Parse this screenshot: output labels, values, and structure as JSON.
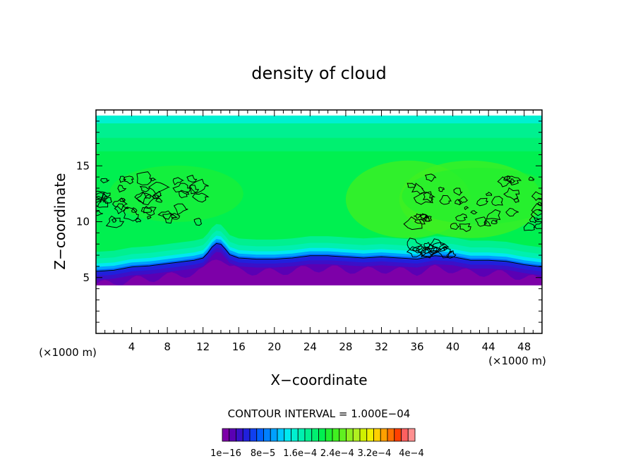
{
  "chart_data": {
    "type": "heatmap",
    "title": "density of cloud",
    "xlabel": "X−coordinate",
    "ylabel": "Z−coordinate",
    "x_unit_label": "(×1000 m)",
    "y_unit_label": "(×1000 m)",
    "x_range": [
      0,
      50
    ],
    "y_range": [
      0,
      20
    ],
    "x_ticks": [
      4,
      8,
      12,
      16,
      20,
      24,
      28,
      32,
      36,
      40,
      44,
      48
    ],
    "y_ticks": [
      5,
      10,
      15
    ],
    "grid": false,
    "contour_interval_text": "CONTOUR INTERVAL = 1.000E−04",
    "colorbar_labels": [
      "1e−16",
      "8e−5",
      "1.6e−4",
      "2.4e−4",
      "3.2e−4",
      "4e−4"
    ],
    "colorbar_levels": 28,
    "cloud_base_profile": {
      "x": [
        0,
        2,
        4,
        6,
        8,
        10,
        11,
        12,
        12.6,
        13.2,
        13.8,
        14.4,
        15,
        16,
        18,
        20,
        22,
        24,
        26,
        28,
        30,
        32,
        34,
        36,
        38,
        40,
        42,
        44,
        46,
        48,
        50
      ],
      "z": [
        5.5,
        5.6,
        5.9,
        6.0,
        6.2,
        6.4,
        6.5,
        6.7,
        7.2,
        7.9,
        8.1,
        7.6,
        7.0,
        6.7,
        6.6,
        6.6,
        6.7,
        6.9,
        6.9,
        6.8,
        6.7,
        6.8,
        6.7,
        6.6,
        6.9,
        6.8,
        6.5,
        6.5,
        6.4,
        6.1,
        5.9
      ]
    },
    "cloud_bottom_z": 4.3,
    "cloud_top_z": 19.5,
    "contour_clusters": [
      {
        "x_range": [
          0,
          12
        ],
        "z_range": [
          10,
          14
        ]
      },
      {
        "x_range": [
          35,
          40
        ],
        "z_range": [
          7,
          8
        ]
      },
      {
        "x_range": [
          35,
          50
        ],
        "z_range": [
          9.5,
          14
        ]
      }
    ],
    "palette": [
      "#7d00a8",
      "#5a00b4",
      "#3a10c8",
      "#2020dc",
      "#1040f0",
      "#0060ff",
      "#0080ff",
      "#00a0ff",
      "#00c8ff",
      "#00e8f0",
      "#00f0d0",
      "#00f0b0",
      "#00f090",
      "#00f070",
      "#00f050",
      "#20f030",
      "#40f020",
      "#60f020",
      "#90f020",
      "#b0f020",
      "#d0f000",
      "#f0f000",
      "#ffd000",
      "#ffa000",
      "#ff7000",
      "#ff4000",
      "#ff6060",
      "#ff9090"
    ]
  }
}
